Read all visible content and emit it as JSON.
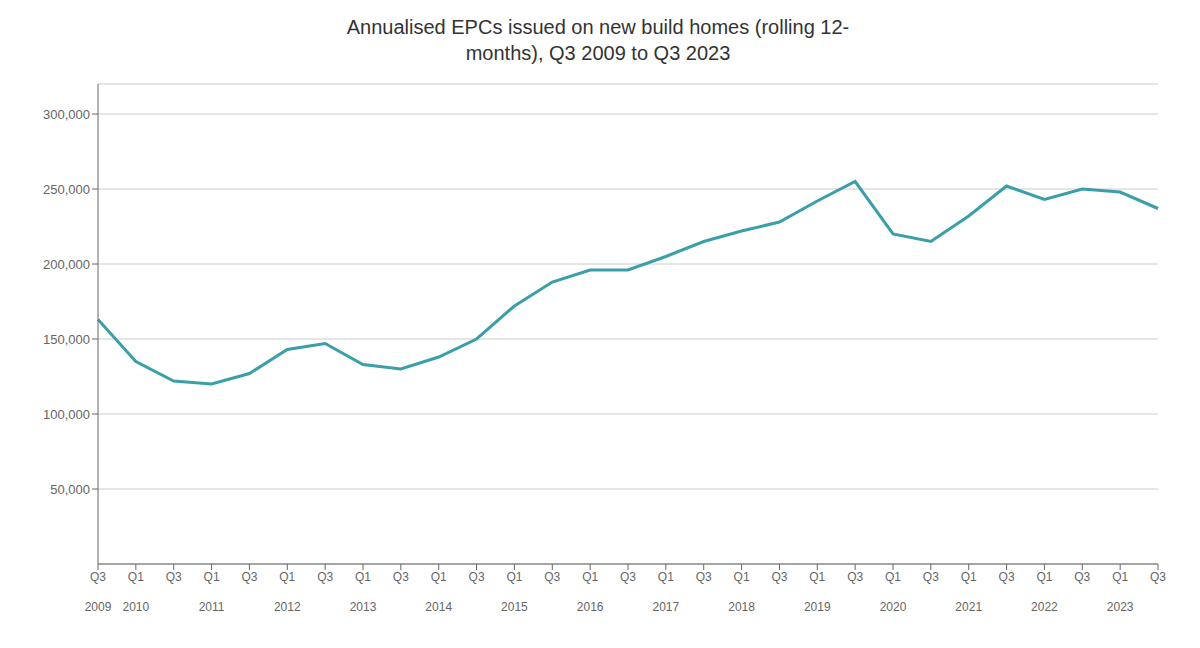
{
  "chart_data": {
    "type": "line",
    "title": "Annualised EPCs issued on new build homes (rolling 12-\nmonths), Q3 2009 to Q3 2023",
    "categories": [
      "Q3",
      "Q1",
      "Q3",
      "Q1",
      "Q3",
      "Q1",
      "Q3",
      "Q1",
      "Q3",
      "Q1",
      "Q3",
      "Q1",
      "Q3",
      "Q1",
      "Q3",
      "Q1",
      "Q3",
      "Q1",
      "Q3",
      "Q1",
      "Q3",
      "Q1",
      "Q3",
      "Q1",
      "Q3",
      "Q1",
      "Q3",
      "Q1",
      "Q3"
    ],
    "values": [
      163000,
      135000,
      122000,
      120000,
      127000,
      143000,
      147000,
      133000,
      130000,
      138000,
      150000,
      172000,
      188000,
      196000,
      196000,
      205000,
      215000,
      222000,
      228000,
      242000,
      255000,
      220000,
      215000,
      232000,
      252000,
      243000,
      250000,
      248000,
      237000
    ],
    "color": "#3a9fa8",
    "ylim": [
      0,
      320000
    ],
    "yticks": [
      {
        "value": 50000,
        "label": "50,000"
      },
      {
        "value": 100000,
        "label": "100,000"
      },
      {
        "value": 150000,
        "label": "150,000"
      },
      {
        "value": 200000,
        "label": "200,000"
      },
      {
        "value": 250000,
        "label": "250,000"
      },
      {
        "value": 300000,
        "label": "300,000"
      }
    ],
    "grid": true,
    "annotations": [
      {
        "x": 0,
        "text": "2009"
      },
      {
        "x": 1,
        "text": "2010"
      },
      {
        "x": 3,
        "text": "2011"
      },
      {
        "x": 5,
        "text": "2012"
      },
      {
        "x": 7,
        "text": "2013"
      },
      {
        "x": 9,
        "text": "2014"
      },
      {
        "x": 11,
        "text": "2015"
      },
      {
        "x": 13,
        "text": "2016"
      },
      {
        "x": 15,
        "text": "2017"
      },
      {
        "x": 17,
        "text": "2018"
      },
      {
        "x": 19,
        "text": "2019"
      },
      {
        "x": 21,
        "text": "2020"
      },
      {
        "x": 23,
        "text": "2021"
      },
      {
        "x": 25,
        "text": "2022"
      },
      {
        "x": 27,
        "text": "2023"
      }
    ]
  }
}
